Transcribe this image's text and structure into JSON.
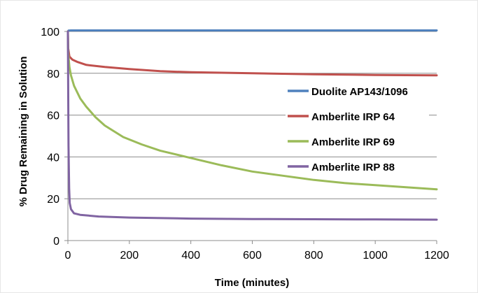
{
  "chart_data": {
    "type": "line",
    "title": "",
    "xlabel": "Time (minutes)",
    "ylabel": "% Drug Remaining in Solution",
    "xlim": [
      0,
      1200
    ],
    "ylim": [
      0,
      100
    ],
    "xticks": [
      0,
      200,
      400,
      600,
      800,
      1000,
      1200
    ],
    "yticks": [
      0,
      20,
      40,
      60,
      80,
      100
    ],
    "grid": "horizontal",
    "legend_position": "right",
    "series": [
      {
        "name": "Duolite AP143/1096",
        "color": "#4f81bd",
        "x": [
          0,
          2,
          10,
          100,
          300,
          600,
          900,
          1200
        ],
        "y": [
          100,
          100.4,
          100.5,
          100.5,
          100.5,
          100.5,
          100.5,
          100.5
        ]
      },
      {
        "name": "Amberlite IRP 64",
        "color": "#c0504d",
        "x": [
          0,
          1,
          5,
          15,
          30,
          60,
          120,
          200,
          300,
          400,
          600,
          800,
          1000,
          1200
        ],
        "y": [
          100,
          92,
          88,
          86.5,
          85.5,
          84,
          83,
          82,
          81,
          80.5,
          80,
          79.5,
          79.2,
          79
        ]
      },
      {
        "name": "Amberlite IRP 69",
        "color": "#9bbb59",
        "x": [
          0,
          1,
          5,
          10,
          20,
          40,
          60,
          90,
          120,
          180,
          240,
          300,
          400,
          500,
          600,
          700,
          800,
          900,
          1000,
          1100,
          1200
        ],
        "y": [
          100,
          90,
          83,
          79,
          74,
          68,
          64,
          59,
          55,
          49.5,
          46,
          43,
          39.5,
          36,
          33,
          31,
          29,
          27.5,
          26.5,
          25.5,
          24.5
        ]
      },
      {
        "name": "Amberlite IRP 88",
        "color": "#8064a2",
        "x": [
          0,
          1,
          2,
          4,
          6,
          10,
          20,
          40,
          100,
          200,
          400,
          600,
          800,
          1000,
          1200
        ],
        "y": [
          100,
          75,
          45,
          25,
          18,
          15,
          13,
          12.3,
          11.5,
          11,
          10.5,
          10.3,
          10.2,
          10.1,
          10
        ]
      }
    ]
  }
}
